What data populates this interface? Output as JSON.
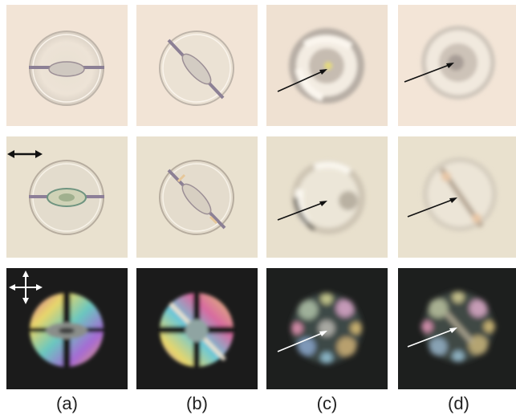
{
  "figure": {
    "columns": [
      {
        "id": "a",
        "label": "(a)"
      },
      {
        "id": "b",
        "label": "(b)"
      },
      {
        "id": "c",
        "label": "(c)"
      },
      {
        "id": "d",
        "label": "(d)"
      }
    ],
    "rows": [
      {
        "id": "top",
        "background": "#f2e4d6"
      },
      {
        "id": "middle",
        "background": "#e9e1cf"
      },
      {
        "id": "bottom",
        "background": "#1b1b1b"
      }
    ],
    "indicators": {
      "polarizer_icon": "double-arrow-horizontal",
      "crossed_polarizers_icon": "four-way-arrow"
    },
    "colors": {
      "arrow_dark": "#111111",
      "arrow_light": "#ffffff"
    }
  }
}
